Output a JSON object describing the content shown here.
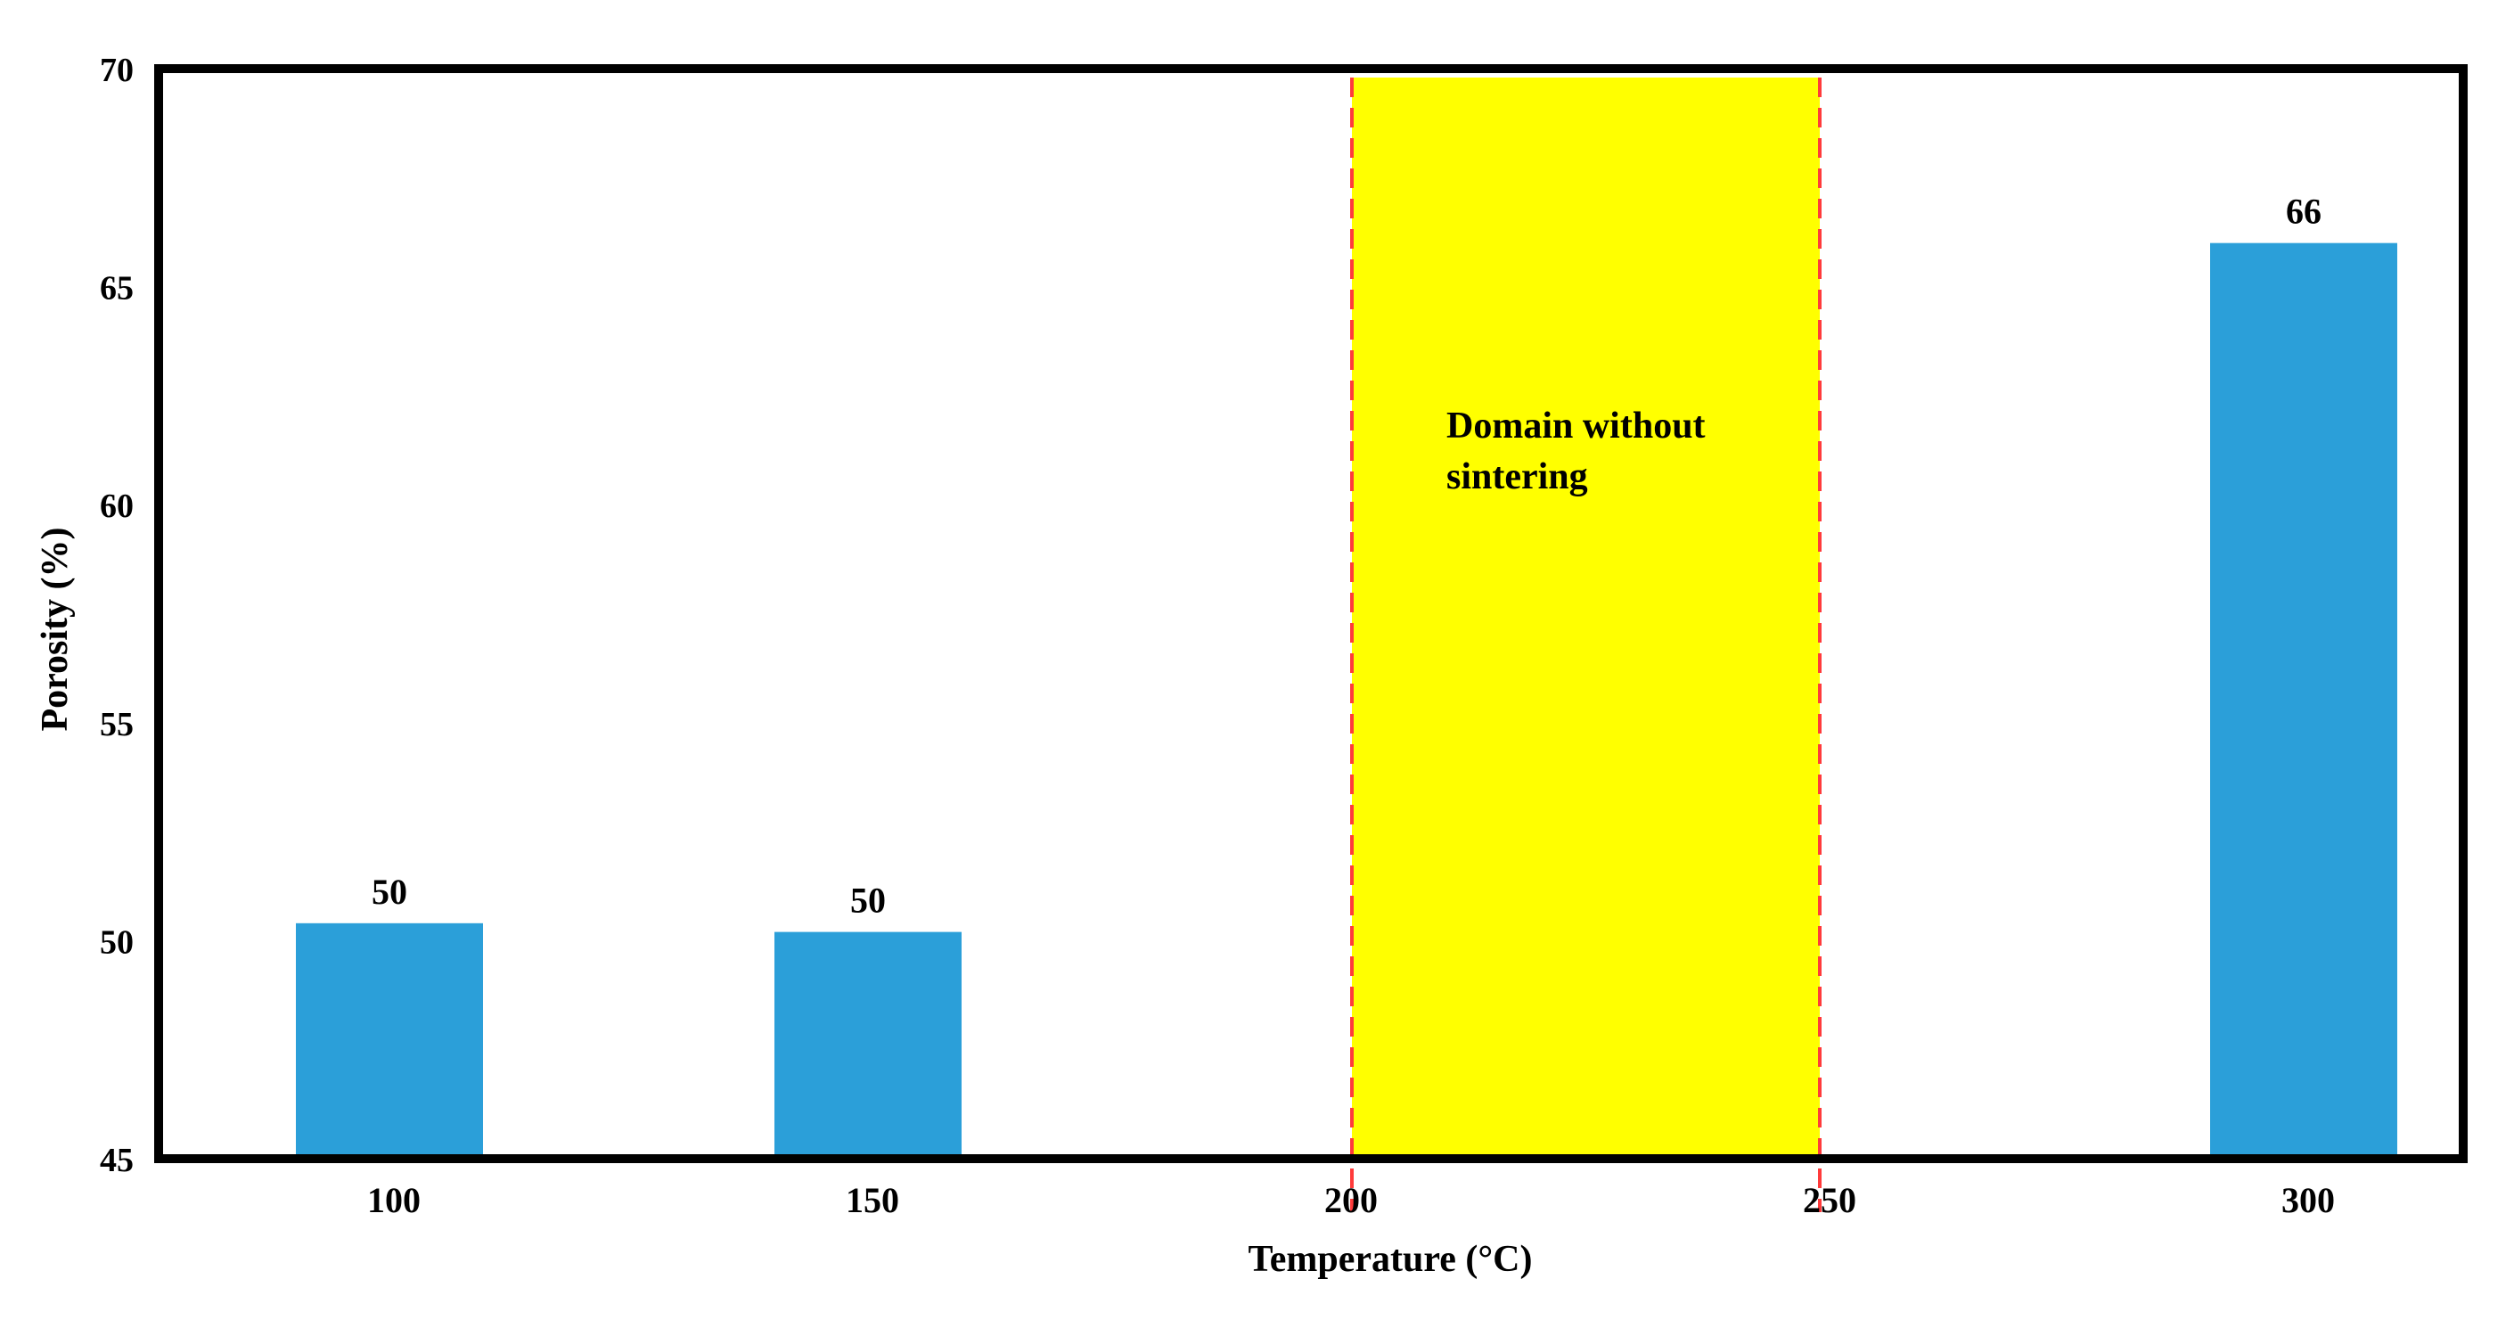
{
  "chart_data": {
    "type": "bar",
    "title": "",
    "xlabel": "Temperature (°C)",
    "ylabel": "Porosity (%)",
    "ylim": [
      45,
      70
    ],
    "y_ticks": [
      "45",
      "50",
      "55",
      "60",
      "65",
      "70"
    ],
    "x_ticks": [
      "100",
      "150",
      "200",
      "250",
      "300"
    ],
    "bars": [
      {
        "x": 100,
        "value": 50.4,
        "label": "50"
      },
      {
        "x": 150,
        "value": 50.2,
        "label": "50"
      },
      {
        "x": 300,
        "value": 66,
        "label": "66"
      }
    ],
    "region": {
      "x_start": 200,
      "x_end": 250,
      "label_line1": "Domain without",
      "label_line2": "sintering",
      "fill": "#ffff00",
      "boundary_color": "#ff3b3b",
      "boundary_style": "dashed"
    },
    "bar_color": "#2b9fd9",
    "grid": false,
    "legend": "none"
  }
}
